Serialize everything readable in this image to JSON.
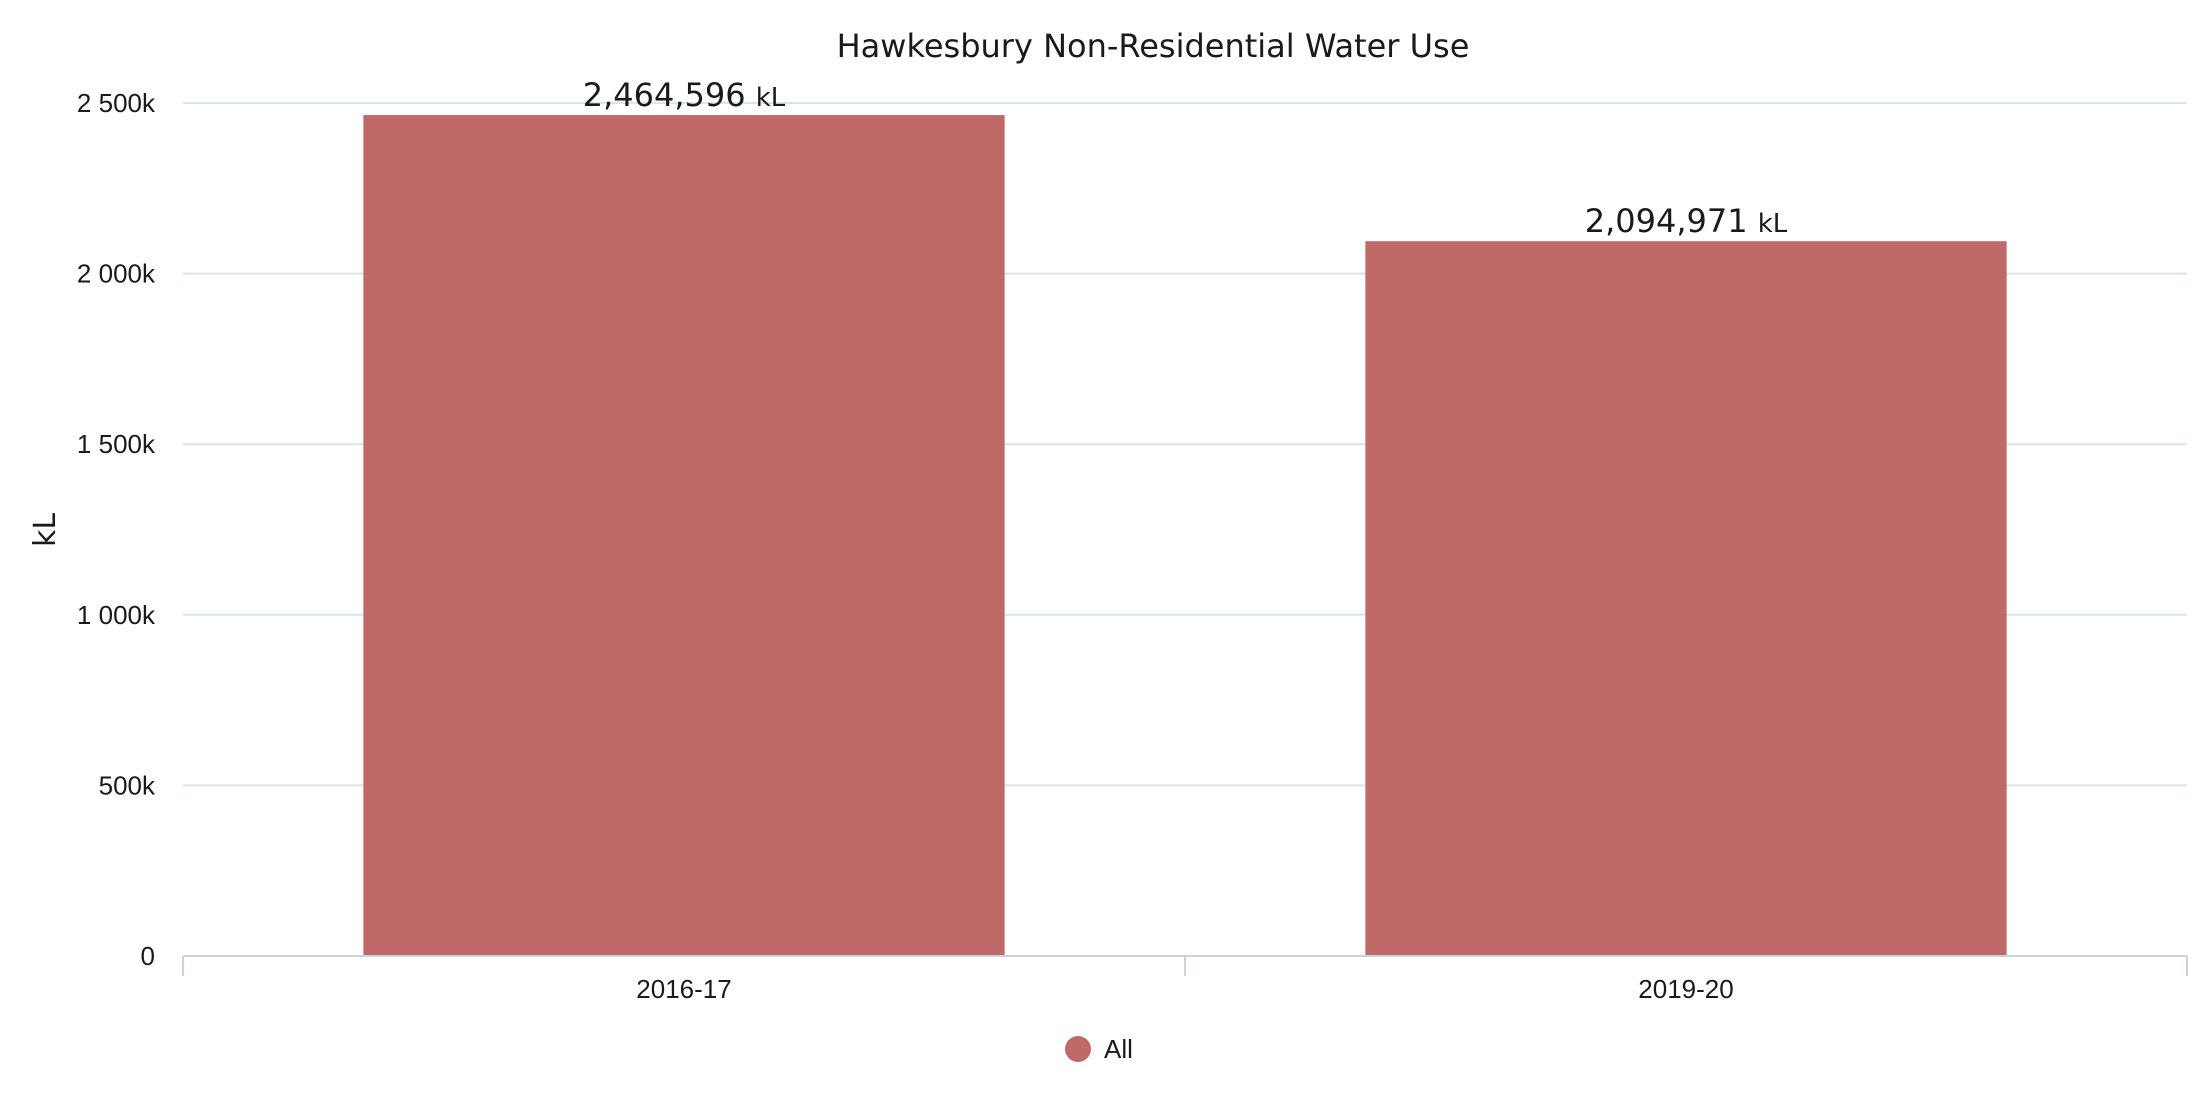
{
  "chart_data": {
    "type": "bar",
    "title": "Hawkesbury Non-Residential Water Use",
    "xlabel": "",
    "ylabel": "kL",
    "categories": [
      "2016-17",
      "2019-20"
    ],
    "series": [
      {
        "name": "All",
        "values": [
          2464596,
          2094971
        ],
        "color": "#bf6a69"
      }
    ],
    "data_labels": [
      {
        "number": "2,464,596",
        "unit": "kL"
      },
      {
        "number": "2,094,971",
        "unit": "kL"
      }
    ],
    "ylim": [
      0,
      2500000
    ],
    "y_ticks": [
      {
        "value": 0,
        "label": "0"
      },
      {
        "value": 500000,
        "label": "500k"
      },
      {
        "value": 1000000,
        "label": "1 000k"
      },
      {
        "value": 1500000,
        "label": "1 500k"
      },
      {
        "value": 2000000,
        "label": "2 000k"
      },
      {
        "value": 2500000,
        "label": "2 500k"
      }
    ],
    "grid": true,
    "legend_position": "bottom-center"
  }
}
